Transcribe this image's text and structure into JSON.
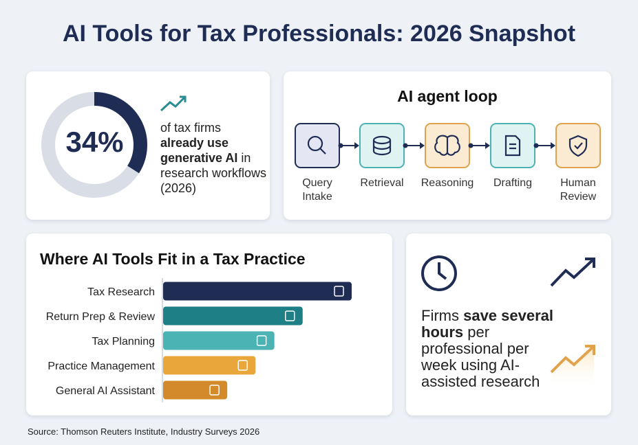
{
  "title": "AI Tools for Tax Professionals: 2026 Snapshot",
  "stat": {
    "percent": {
      "value": 34,
      "label": "34%"
    },
    "text": [
      "of tax firms ",
      "already use generative AI",
      " in research workflows (2026)"
    ]
  },
  "agent_loop": {
    "title": "AI agent loop",
    "steps": [
      "Query Intake",
      "Retrieval",
      "Reasoning",
      "Drafting",
      "Human Review"
    ]
  },
  "chart_data": {
    "type": "bar",
    "title": "Where AI Tools Fit in a Tax Practice",
    "categories": [
      "Tax Research",
      "Return Prep & Review",
      "Tax Planning",
      "Practice Management",
      "General AI Assistant"
    ],
    "values": [
      100,
      74,
      59,
      49,
      34
    ],
    "colors": [
      "#1f2d55",
      "#1f7f86",
      "#4bb3b3",
      "#e8a63b",
      "#d38a2a"
    ],
    "xlim": [
      0,
      100
    ]
  },
  "savings": {
    "text": [
      "Firms ",
      "save several hours",
      " per professional per week using AI-assisted research"
    ]
  },
  "source": "Source: Thomson Reuters Institute, Industry Surveys 2026"
}
